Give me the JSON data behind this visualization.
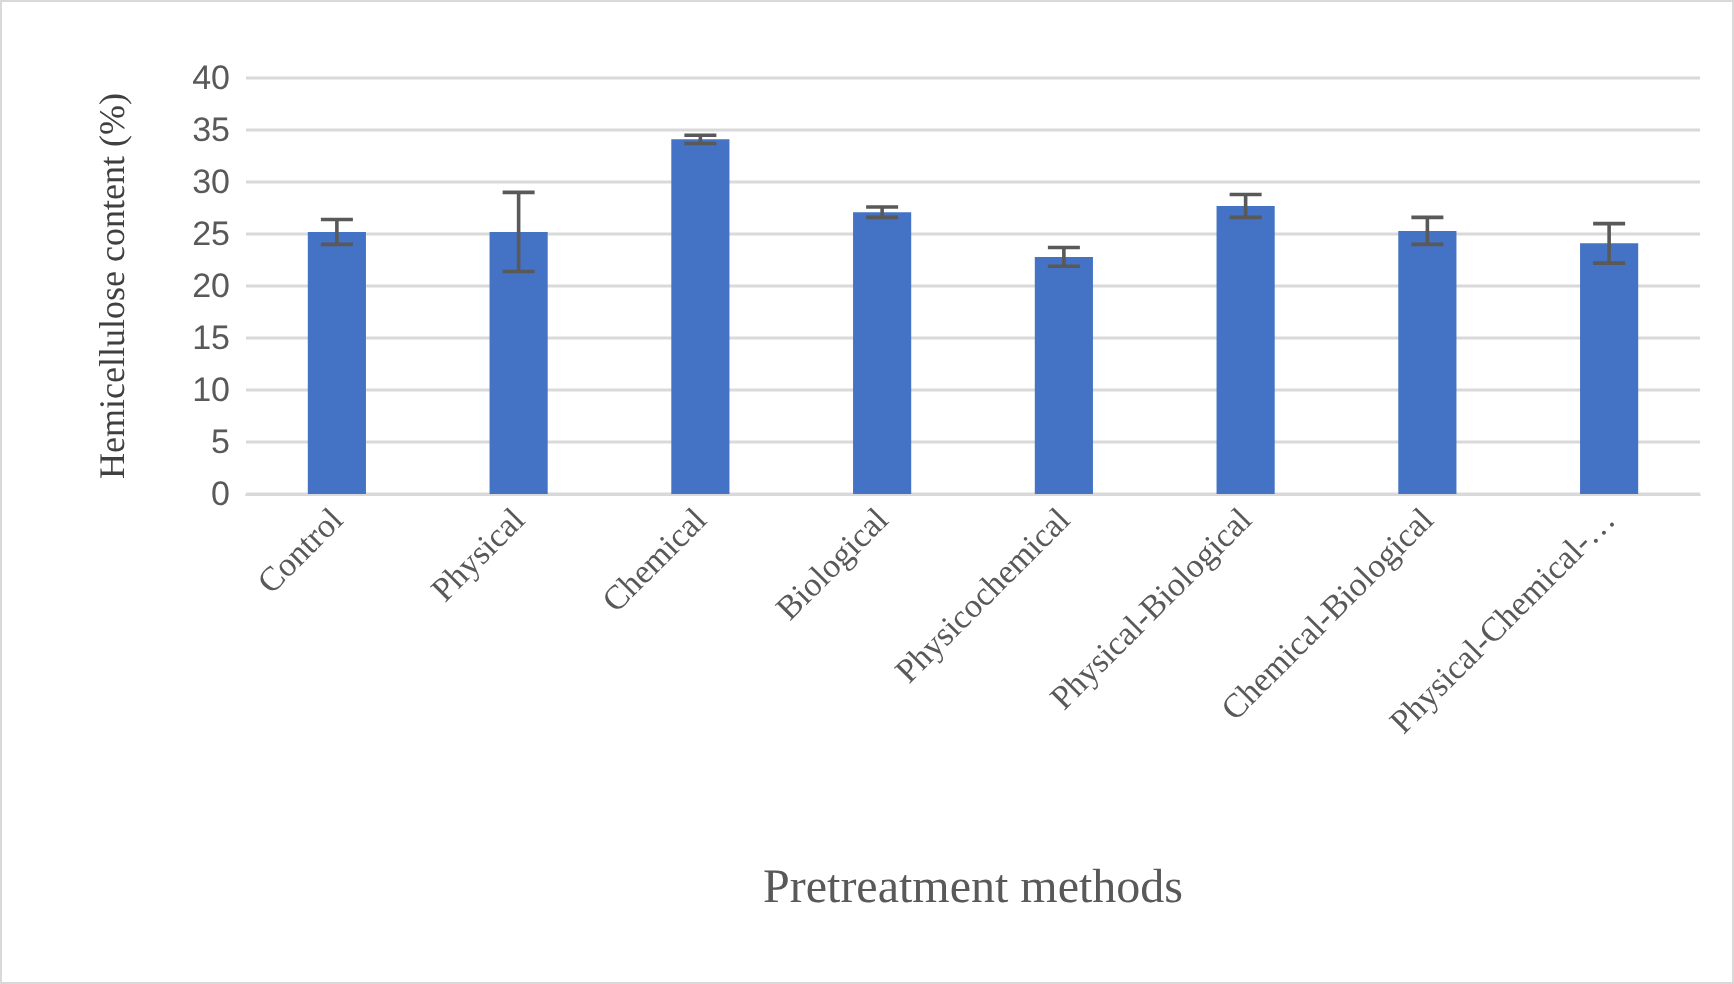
{
  "chart_data": {
    "type": "bar",
    "xlabel": "Pretreatment methods",
    "ylabel": "Hemicellulose content (%)",
    "categories": [
      "Control",
      "Physical",
      "Chemical",
      "Biological",
      "Physicochemical",
      "Physical-Biological",
      "Chemical-Biological",
      "Physical-Chemical-…"
    ],
    "values": [
      25.2,
      25.2,
      34.1,
      27.1,
      22.8,
      27.7,
      25.3,
      24.1
    ],
    "errors": [
      1.2,
      3.8,
      0.4,
      0.5,
      0.9,
      1.1,
      1.3,
      1.9
    ],
    "color": "#4472c4",
    "ylim": [
      0,
      40
    ],
    "yticks": [
      0,
      5,
      10,
      15,
      20,
      25,
      30,
      35,
      40
    ],
    "grid": "y"
  }
}
